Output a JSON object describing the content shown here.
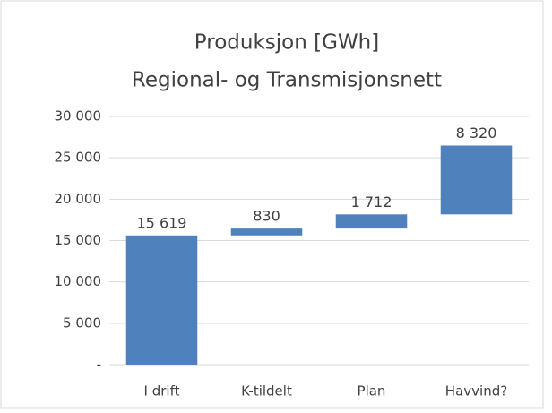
{
  "chart_data": {
    "type": "waterfall",
    "title": [
      "Produksjon [GWh]",
      "Regional- og Transmisjonsnett"
    ],
    "categories": [
      "I drift",
      "K-tildelt",
      "Plan",
      "Havvind?"
    ],
    "values": [
      15619,
      830,
      1712,
      8320
    ],
    "value_labels": [
      "15 619",
      "830",
      "1 712",
      "8 320"
    ],
    "color": "#4f81bd",
    "ylim": [
      0,
      30000
    ],
    "yticks": [
      {
        "value": 0,
        "label": "-"
      },
      {
        "value": 5000,
        "label": "5 000"
      },
      {
        "value": 10000,
        "label": "10 000"
      },
      {
        "value": 15000,
        "label": "15 000"
      },
      {
        "value": 20000,
        "label": "20 000"
      },
      {
        "value": 25000,
        "label": "25 000"
      },
      {
        "value": 30000,
        "label": "30 000"
      }
    ],
    "grid": true
  }
}
